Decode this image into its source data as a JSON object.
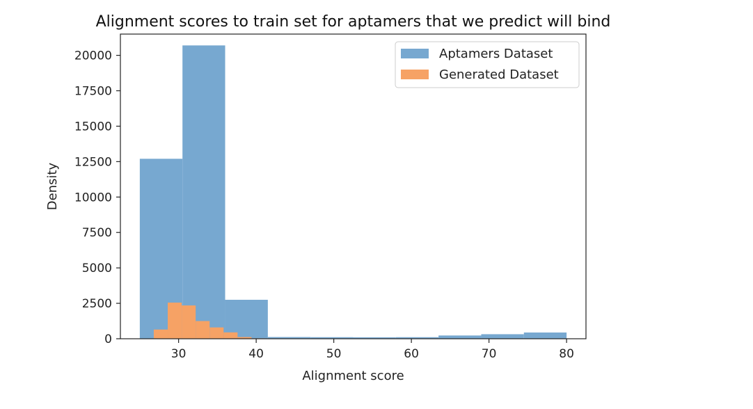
{
  "chart_data": {
    "type": "bar",
    "title": "Alignment scores to train set for aptamers that we predict will bind",
    "xlabel": "Alignment score",
    "ylabel": "Density",
    "xlim": [
      22.5,
      82.5
    ],
    "ylim": [
      0,
      21500
    ],
    "xticks": [
      30,
      40,
      50,
      60,
      70,
      80
    ],
    "yticks": [
      0,
      2500,
      5000,
      7500,
      10000,
      12500,
      15000,
      17500,
      20000
    ],
    "legend_position": "upper right",
    "grid": false,
    "series": [
      {
        "name": "Aptamers Dataset",
        "color": "#77a8d0",
        "bins": [
          {
            "x0": 25.0,
            "x1": 30.5,
            "value": 12700
          },
          {
            "x0": 30.5,
            "x1": 36.0,
            "value": 20700
          },
          {
            "x0": 36.0,
            "x1": 41.5,
            "value": 2750
          },
          {
            "x0": 41.5,
            "x1": 47.0,
            "value": 120
          },
          {
            "x0": 47.0,
            "x1": 52.5,
            "value": 110
          },
          {
            "x0": 52.5,
            "x1": 58.0,
            "value": 100
          },
          {
            "x0": 58.0,
            "x1": 63.5,
            "value": 110
          },
          {
            "x0": 63.5,
            "x1": 69.0,
            "value": 230
          },
          {
            "x0": 69.0,
            "x1": 74.5,
            "value": 320
          },
          {
            "x0": 74.5,
            "x1": 80.0,
            "value": 440
          }
        ]
      },
      {
        "name": "Generated Dataset",
        "color": "#f6a265",
        "bins": [
          {
            "x0": 26.8,
            "x1": 28.6,
            "value": 650
          },
          {
            "x0": 28.6,
            "x1": 30.4,
            "value": 2550
          },
          {
            "x0": 30.4,
            "x1": 32.2,
            "value": 2350
          },
          {
            "x0": 32.2,
            "x1": 34.0,
            "value": 1250
          },
          {
            "x0": 34.0,
            "x1": 35.8,
            "value": 800
          },
          {
            "x0": 35.8,
            "x1": 37.6,
            "value": 450
          },
          {
            "x0": 37.6,
            "x1": 39.4,
            "value": 120
          },
          {
            "x0": 39.4,
            "x1": 41.2,
            "value": 30
          }
        ]
      }
    ]
  }
}
